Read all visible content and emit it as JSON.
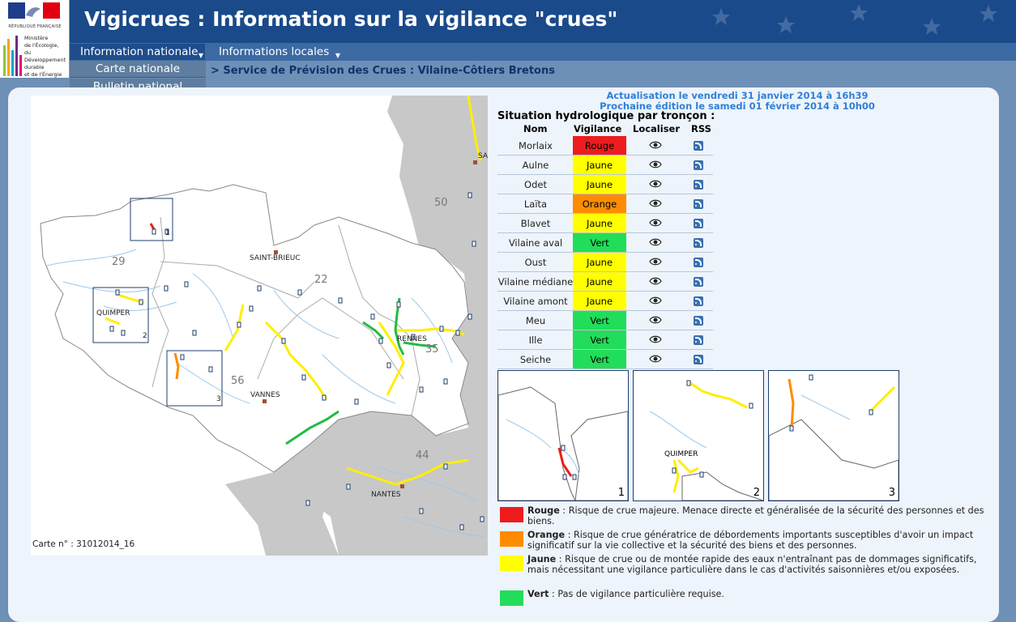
{
  "header": {
    "title": "Vigicrues : Information sur la vigilance \"crues\"",
    "logo_rf": "RÉPUBLIQUE FRANÇAISE",
    "ministry": [
      "Ministère",
      "de l'Écologie,",
      "du Développement",
      "durable",
      "et de l'Énergie"
    ]
  },
  "menu": {
    "tabs": [
      {
        "label": "Information nationale"
      },
      {
        "label": "Informations locales"
      }
    ],
    "dropdown": [
      {
        "label": "Carte nationale"
      },
      {
        "label": "Bulletin national"
      }
    ]
  },
  "breadcrumb": "> Service de Prévision des Crues : Vilaine-Côtiers Bretons",
  "updates": {
    "actualisation": "Actualisation le vendredi 31 janvier 2014 à 16h39",
    "prochaine": "Prochaine édition le samedi 01 février 2014 à 10h00"
  },
  "situation": {
    "title": "Situation hydrologique par tronçon :",
    "headers": {
      "nom": "Nom",
      "vigilance": "Vigilance",
      "localiser": "Localiser",
      "rss": "RSS"
    },
    "rows": [
      {
        "nom": "Morlaix",
        "vigilance": "Rouge",
        "color": "#ee1c1c"
      },
      {
        "nom": "Aulne",
        "vigilance": "Jaune",
        "color": "#ffff00"
      },
      {
        "nom": "Odet",
        "vigilance": "Jaune",
        "color": "#ffff00"
      },
      {
        "nom": "Laïta",
        "vigilance": "Orange",
        "color": "#ff8c00"
      },
      {
        "nom": "Blavet",
        "vigilance": "Jaune",
        "color": "#ffff00"
      },
      {
        "nom": "Vilaine aval",
        "vigilance": "Vert",
        "color": "#22dd5a"
      },
      {
        "nom": "Oust",
        "vigilance": "Jaune",
        "color": "#ffff00"
      },
      {
        "nom": "Vilaine médiane",
        "vigilance": "Jaune",
        "color": "#ffff00"
      },
      {
        "nom": "Vilaine amont",
        "vigilance": "Jaune",
        "color": "#ffff00"
      },
      {
        "nom": "Meu",
        "vigilance": "Vert",
        "color": "#22dd5a"
      },
      {
        "nom": "Ille",
        "vigilance": "Vert",
        "color": "#22dd5a"
      },
      {
        "nom": "Seiche",
        "vigilance": "Vert",
        "color": "#22dd5a"
      }
    ]
  },
  "map": {
    "carte_no": "Carte n° : 31012014_16",
    "dept_labels": [
      "29",
      "22",
      "35",
      "56",
      "44",
      "50"
    ],
    "city_labels": [
      "SAINT-BRIEUC",
      "QUIMPER",
      "RENNES",
      "VANNES",
      "NANTES",
      "SA"
    ],
    "inset_numbers": [
      "1",
      "2",
      "3"
    ]
  },
  "minimaps": [
    {
      "num": "1"
    },
    {
      "num": "2",
      "city": "QUIMPER"
    },
    {
      "num": "3"
    }
  ],
  "legend": [
    {
      "label": "Rouge",
      "text": " : Risque de crue majeure. Menace directe et généralisée de la sécurité des personnes et des biens.",
      "color": "#ee1c1c"
    },
    {
      "label": "Orange",
      "text": " : Risque de crue génératrice de débordements importants susceptibles d'avoir un impact significatif sur la vie collective et la sécurité des biens et des personnes.",
      "color": "#ff8c00"
    },
    {
      "label": "Jaune",
      "text": " : Risque de crue ou de montée rapide des eaux n'entraînant pas de dommages significatifs, mais nécessitant une vigilance particulière dans le cas d'activités saisonnières et/ou exposées.",
      "color": "#ffff00"
    },
    {
      "label": "Vert",
      "text": " : Pas de vigilance particulière requise.",
      "color": "#22dd5a"
    }
  ]
}
